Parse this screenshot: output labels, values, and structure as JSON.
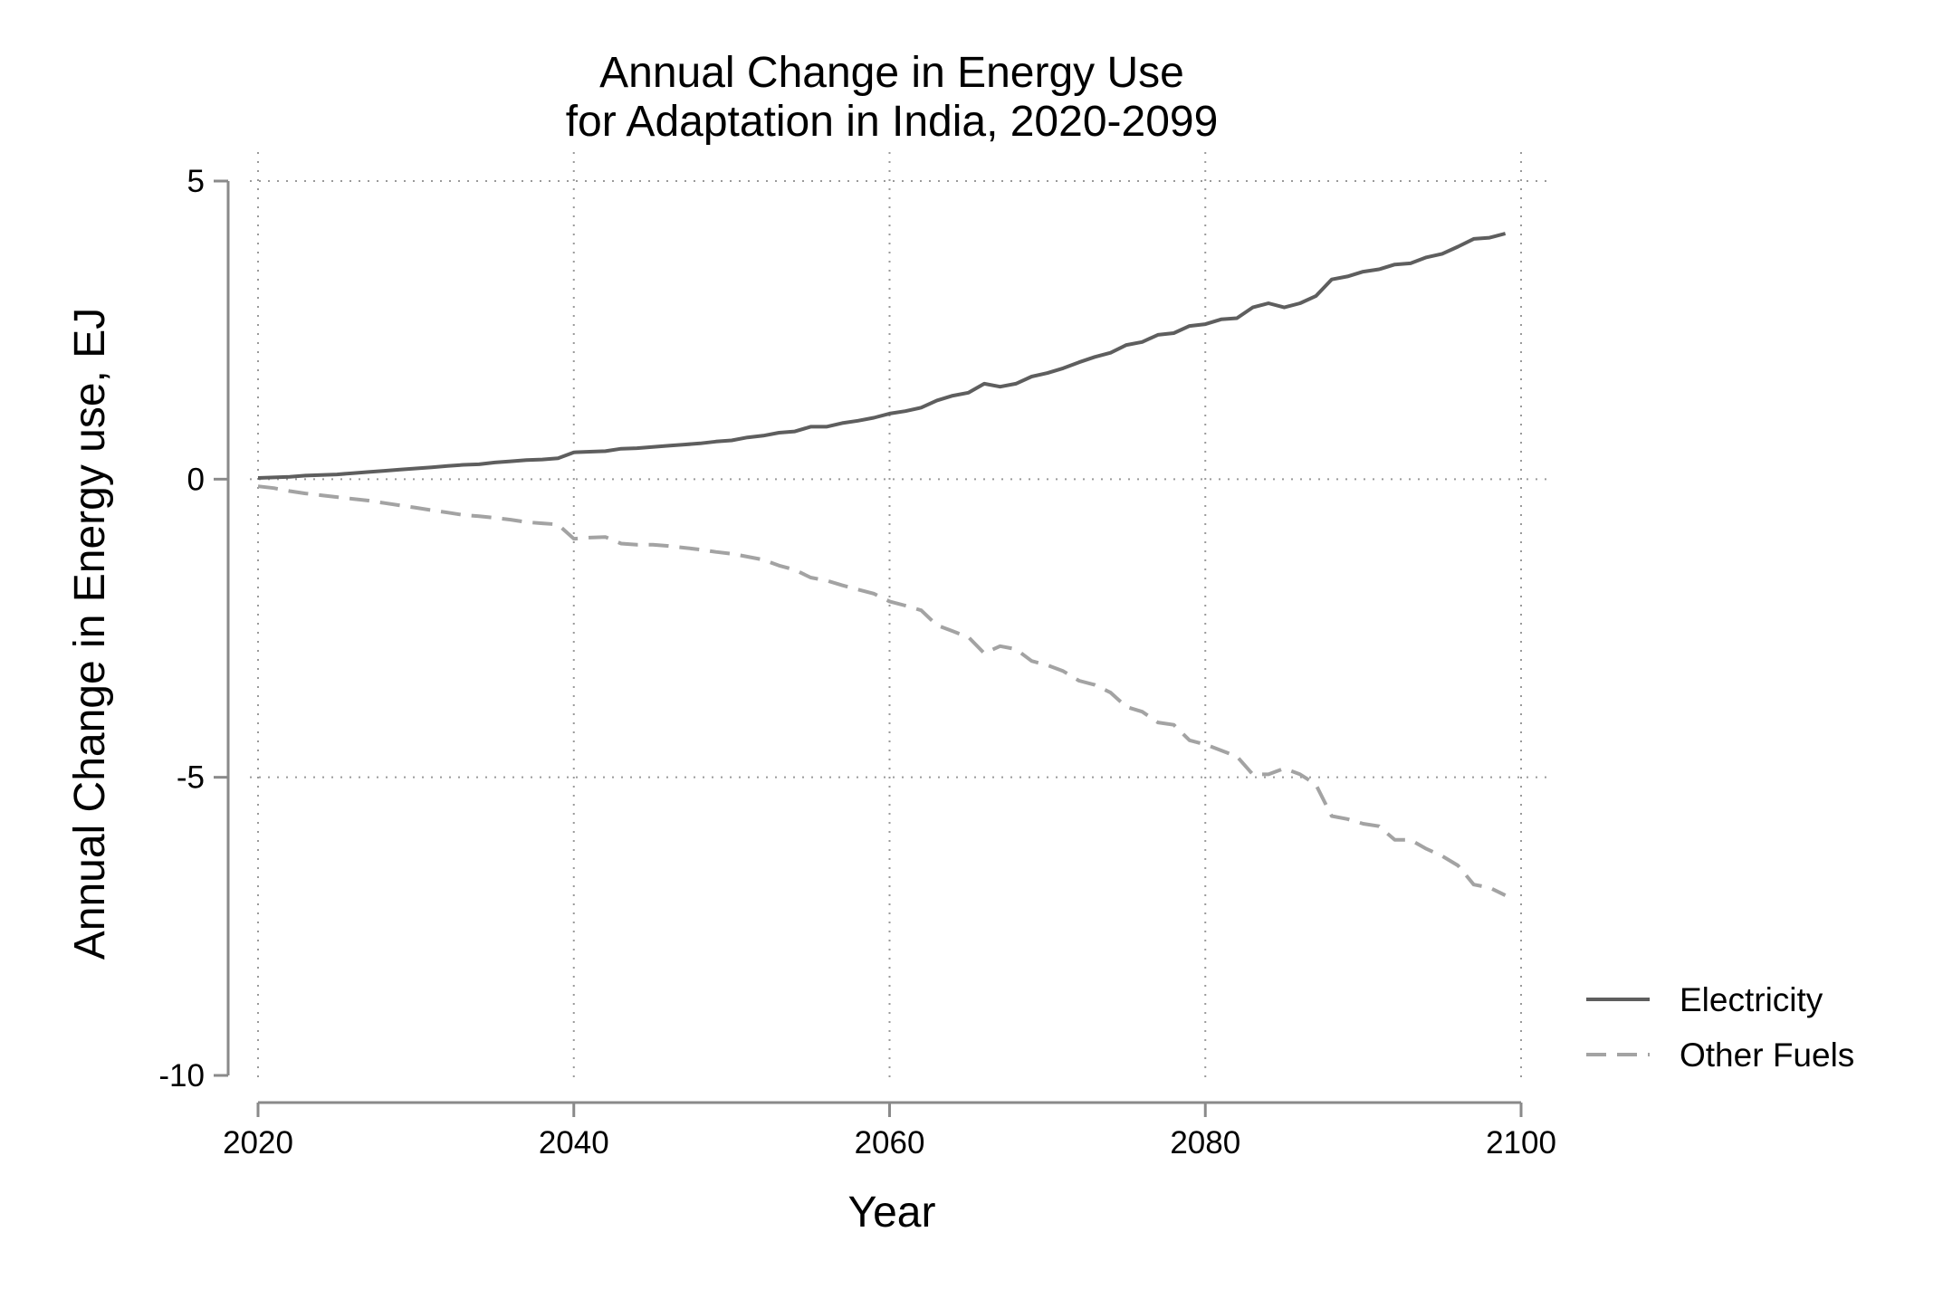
{
  "chart_data": {
    "type": "line",
    "title": [
      "Annual Change in Energy Use",
      "for Adaptation in India, 2020-2099"
    ],
    "xlabel": "Year",
    "ylabel": "Annual Change in Energy use, EJ",
    "xlim": [
      2020,
      2100
    ],
    "ylim": [
      -10,
      5
    ],
    "xticks": [
      2020,
      2040,
      2060,
      2080,
      2100
    ],
    "yticks": [
      5,
      0,
      -5,
      -10
    ],
    "xtick_labels": [
      "2020",
      "2040",
      "2060",
      "2080",
      "2100"
    ],
    "ytick_labels": [
      "5",
      "0",
      "-5",
      "-10"
    ],
    "grid": true,
    "legend_position": "right",
    "x": [
      2020,
      2021,
      2022,
      2023,
      2024,
      2025,
      2026,
      2027,
      2028,
      2029,
      2030,
      2031,
      2032,
      2033,
      2034,
      2035,
      2036,
      2037,
      2038,
      2039,
      2040,
      2041,
      2042,
      2043,
      2044,
      2045,
      2046,
      2047,
      2048,
      2049,
      2050,
      2051,
      2052,
      2053,
      2054,
      2055,
      2056,
      2057,
      2058,
      2059,
      2060,
      2061,
      2062,
      2063,
      2064,
      2065,
      2066,
      2067,
      2068,
      2069,
      2070,
      2071,
      2072,
      2073,
      2074,
      2075,
      2076,
      2077,
      2078,
      2079,
      2080,
      2081,
      2082,
      2083,
      2084,
      2085,
      2086,
      2087,
      2088,
      2089,
      2090,
      2091,
      2092,
      2093,
      2094,
      2095,
      2096,
      2097,
      2098,
      2099
    ],
    "series": [
      {
        "name": "Electricity",
        "color": "#5e5e5e",
        "dash": "solid",
        "values": [
          0.02,
          0.03,
          0.04,
          0.06,
          0.07,
          0.08,
          0.1,
          0.12,
          0.14,
          0.16,
          0.18,
          0.2,
          0.22,
          0.24,
          0.25,
          0.28,
          0.3,
          0.32,
          0.33,
          0.35,
          0.45,
          0.46,
          0.47,
          0.51,
          0.52,
          0.54,
          0.56,
          0.58,
          0.6,
          0.63,
          0.65,
          0.7,
          0.73,
          0.78,
          0.8,
          0.88,
          0.88,
          0.94,
          0.98,
          1.03,
          1.1,
          1.14,
          1.2,
          1.32,
          1.4,
          1.45,
          1.6,
          1.55,
          1.6,
          1.72,
          1.78,
          1.86,
          1.96,
          2.05,
          2.12,
          2.25,
          2.3,
          2.42,
          2.45,
          2.57,
          2.6,
          2.68,
          2.7,
          2.88,
          2.95,
          2.88,
          2.95,
          3.07,
          3.35,
          3.4,
          3.48,
          3.52,
          3.6,
          3.62,
          3.72,
          3.78,
          3.9,
          4.03,
          4.05,
          4.12
        ]
      },
      {
        "name": "Other Fuels",
        "color": "#a3a3a3",
        "dash": "dashed",
        "values": [
          -0.12,
          -0.15,
          -0.2,
          -0.24,
          -0.27,
          -0.3,
          -0.33,
          -0.36,
          -0.4,
          -0.44,
          -0.48,
          -0.52,
          -0.56,
          -0.6,
          -0.62,
          -0.65,
          -0.68,
          -0.72,
          -0.74,
          -0.76,
          -1.0,
          -0.98,
          -0.97,
          -1.08,
          -1.1,
          -1.1,
          -1.12,
          -1.15,
          -1.18,
          -1.22,
          -1.25,
          -1.3,
          -1.35,
          -1.45,
          -1.52,
          -1.65,
          -1.7,
          -1.78,
          -1.85,
          -1.92,
          -2.05,
          -2.12,
          -2.2,
          -2.45,
          -2.55,
          -2.65,
          -2.92,
          -2.8,
          -2.85,
          -3.05,
          -3.12,
          -3.22,
          -3.38,
          -3.45,
          -3.58,
          -3.82,
          -3.9,
          -4.08,
          -4.12,
          -4.38,
          -4.45,
          -4.55,
          -4.65,
          -4.95,
          -4.95,
          -4.85,
          -4.95,
          -5.12,
          -5.65,
          -5.7,
          -5.78,
          -5.82,
          -6.05,
          -6.05,
          -6.2,
          -6.32,
          -6.48,
          -6.8,
          -6.85,
          -6.98
        ]
      }
    ]
  }
}
